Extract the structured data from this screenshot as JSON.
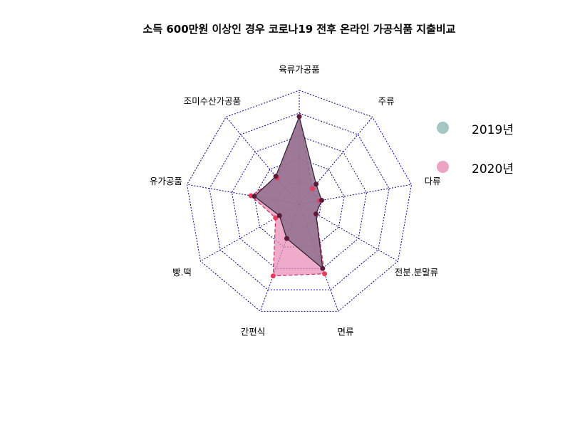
{
  "chart_data": {
    "type": "radar",
    "title": "소득 600만원 이상인 경우 코로나19 전후 온라인 가공식품 지출비교",
    "categories": [
      "육류가공품",
      "주류",
      "다류",
      "전분.분말류",
      "면류",
      "간편식",
      "빵.떡",
      "유가공품",
      "조미수산가공품"
    ],
    "rmax": 100,
    "grid_levels": 5,
    "grid": true,
    "legend_position": "right",
    "series": [
      {
        "name": "2019년",
        "values": [
          77,
          23,
          20,
          17,
          60,
          32,
          20,
          40,
          32
        ],
        "fill": "#8e6f8e",
        "line": "#2e1f2e",
        "point": "#5c1a3a",
        "swatch": "#a4c6c4"
      },
      {
        "name": "2020년",
        "values": [
          77,
          18,
          18,
          17,
          65,
          67,
          24,
          43,
          30
        ],
        "fill": "#e88fb8",
        "line": "#c2315e",
        "point": "#e0405e",
        "swatch": "#eba4c4"
      }
    ]
  }
}
